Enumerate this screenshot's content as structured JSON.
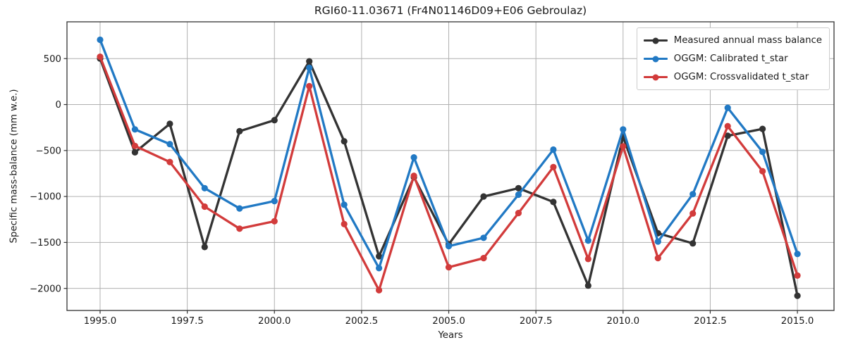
{
  "chart_data": {
    "type": "line",
    "title": "RGI60-11.03671 (Fr4N01146D09+E06 Gebroulaz)",
    "xlabel": "Years",
    "ylabel": "Specific mass-balance (mm w.e.)",
    "x": [
      1995,
      1996,
      1997,
      1998,
      1999,
      2000,
      2001,
      2002,
      2003,
      2004,
      2005,
      2006,
      2007,
      2008,
      2009,
      2010,
      2011,
      2012,
      2013,
      2014,
      2015
    ],
    "series": [
      {
        "name": "Measured annual mass balance",
        "color": "#333333",
        "values": [
          500,
          -520,
          -210,
          -1550,
          -290,
          -170,
          470,
          -400,
          -1650,
          -790,
          -1520,
          -1000,
          -910,
          -1060,
          -1970,
          -350,
          -1400,
          -1510,
          -340,
          -265,
          -2080
        ]
      },
      {
        "name": "OGGM: Calibrated t_star",
        "color": "#2179c4",
        "values": [
          705,
          -270,
          -430,
          -910,
          -1130,
          -1050,
          400,
          -1090,
          -1780,
          -575,
          -1540,
          -1450,
          -980,
          -490,
          -1480,
          -270,
          -1490,
          -975,
          -35,
          -515,
          -1625
        ]
      },
      {
        "name": "OGGM: Crossvalidated t_star",
        "color": "#d23b3b",
        "values": [
          520,
          -450,
          -625,
          -1110,
          -1350,
          -1270,
          200,
          -1300,
          -2020,
          -775,
          -1770,
          -1670,
          -1180,
          -680,
          -1680,
          -455,
          -1670,
          -1185,
          -235,
          -725,
          -1860
        ]
      }
    ],
    "xticks": {
      "values": [
        1995,
        1997.5,
        2000,
        2002.5,
        2005,
        2007.5,
        2010,
        2012.5,
        2015
      ],
      "labels": [
        "1995.0",
        "1997.5",
        "2000.0",
        "2002.5",
        "2005.0",
        "2007.5",
        "2010.0",
        "2012.5",
        "2015.0"
      ]
    },
    "yticks": {
      "values": [
        500,
        0,
        -500,
        -1000,
        -1500,
        -2000
      ],
      "labels": [
        "500",
        "0",
        "−500",
        "−1000",
        "−1500",
        "−2000"
      ]
    },
    "xlim": [
      1994.05,
      2016.05
    ],
    "ylim": [
      -2240,
      900
    ],
    "grid": true,
    "legend_position": "upper right"
  }
}
